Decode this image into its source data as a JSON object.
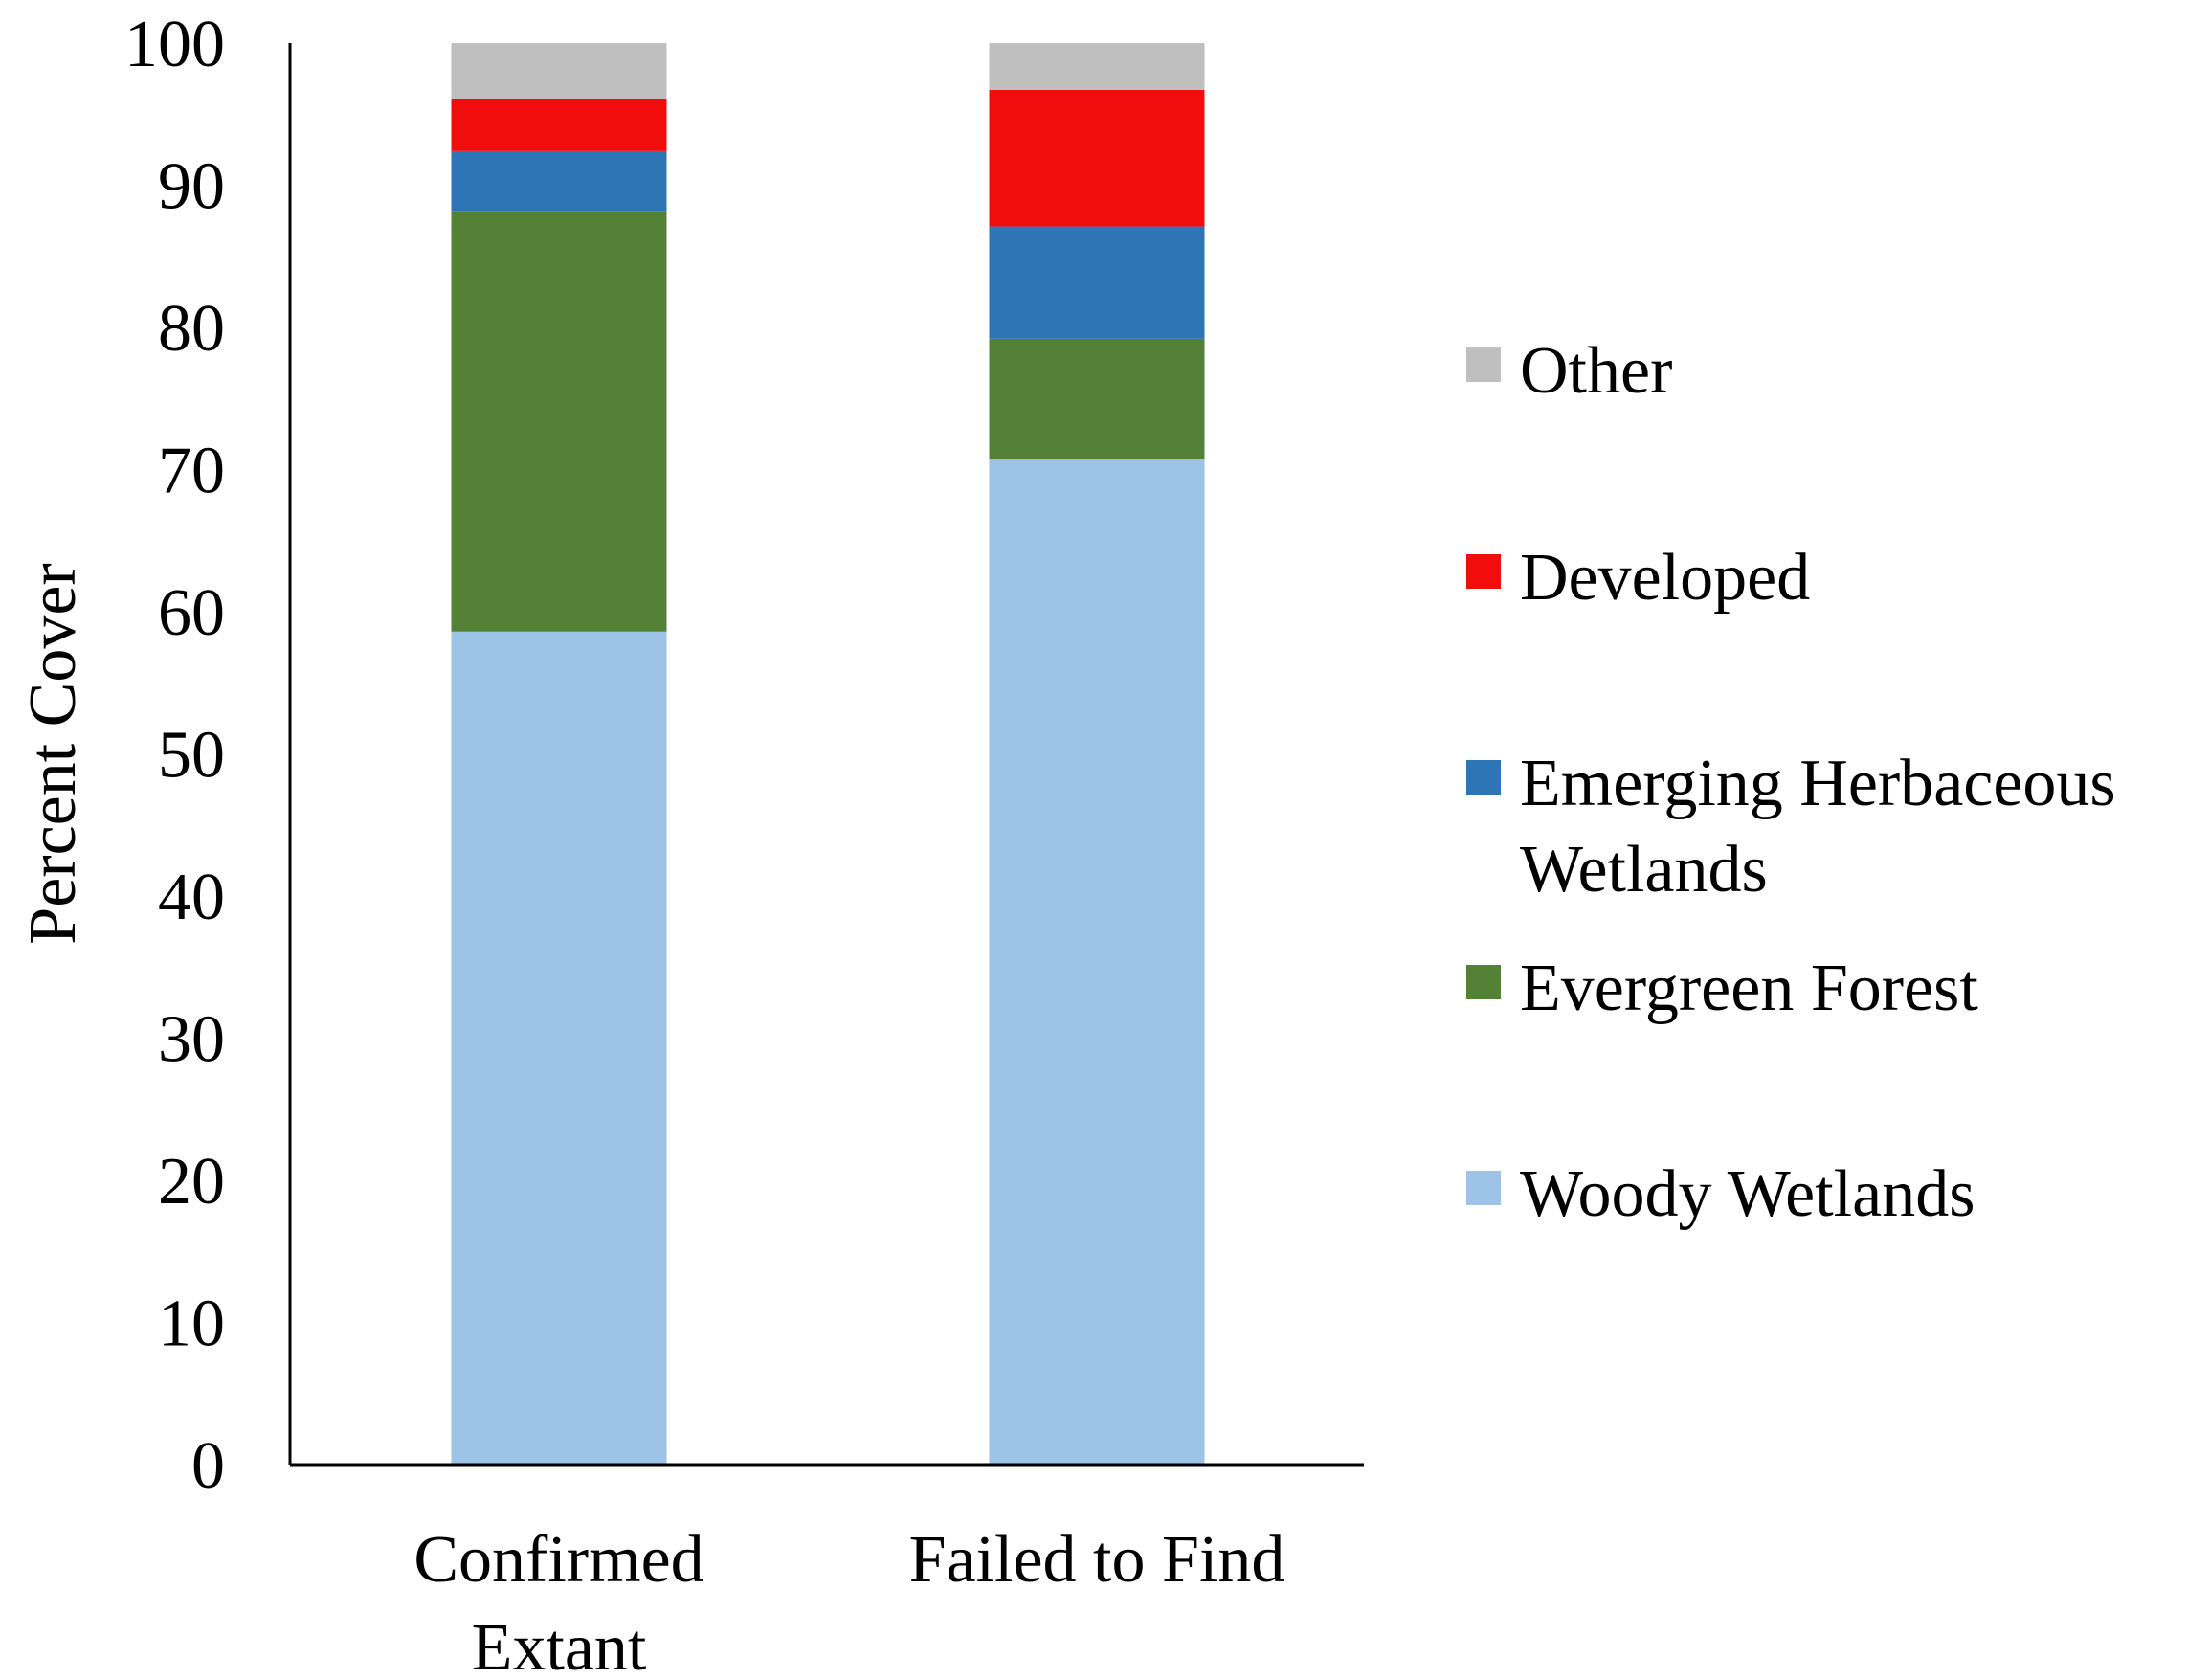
{
  "chart_data": {
    "type": "bar",
    "stacked": true,
    "categories": [
      "Confirmed Extant",
      "Failed to Find"
    ],
    "category_lines": [
      [
        "Confirmed",
        "Extant"
      ],
      [
        "Failed to Find"
      ]
    ],
    "series": [
      {
        "name": "Woody Wetlands",
        "color": "#9DC3E6",
        "values": [
          58.6,
          70.7
        ]
      },
      {
        "name": "Evergreen Forest",
        "color": "#538135",
        "values": [
          29.6,
          8.5
        ]
      },
      {
        "name": "Emerging Herbaceous Wetlands",
        "color": "#2E75B6",
        "values": [
          4.2,
          7.9
        ]
      },
      {
        "name": "Developed",
        "color": "#F20D0D",
        "values": [
          3.7,
          9.6
        ]
      },
      {
        "name": "Other",
        "color": "#BFBFBF",
        "values": [
          3.9,
          3.3
        ]
      }
    ],
    "legend_order": [
      4,
      3,
      2,
      1,
      0
    ],
    "legend_lines": {
      "Woody Wetlands": [
        "Woody Wetlands"
      ],
      "Evergreen Forest": [
        "Evergreen Forest"
      ],
      "Emerging Herbaceous Wetlands": [
        "Emerging Herbaceous",
        "Wetlands"
      ],
      "Developed": [
        "Developed"
      ],
      "Other": [
        "Other"
      ]
    },
    "ylabel": "Percent Cover",
    "ylim": [
      0,
      100
    ],
    "yticks": [
      0,
      10,
      20,
      30,
      40,
      50,
      60,
      70,
      80,
      90,
      100
    ],
    "grid": false,
    "legend_position": "right"
  }
}
